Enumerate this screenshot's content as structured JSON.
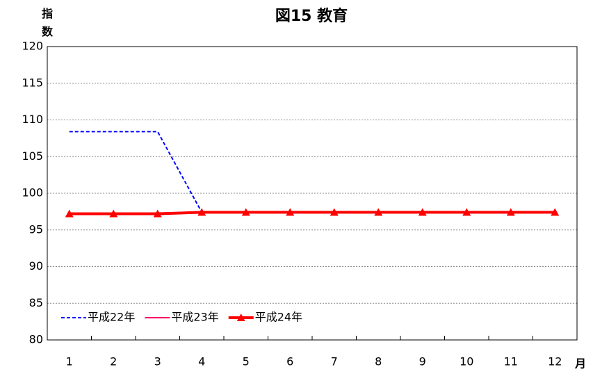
{
  "chart_data": {
    "type": "line",
    "title": "図15 教育",
    "y_label": "指数",
    "x_label": "月",
    "categories": [
      "1",
      "2",
      "3",
      "4",
      "5",
      "6",
      "7",
      "8",
      "9",
      "10",
      "11",
      "12"
    ],
    "series": [
      {
        "name": "平成22年",
        "color": "#0000ff",
        "line_style": "dashed",
        "marker": "none",
        "values": [
          108.4,
          108.4,
          108.4,
          97.4,
          97.4,
          97.4,
          97.4,
          97.4,
          97.4,
          97.4,
          97.4,
          97.4
        ]
      },
      {
        "name": "平成23年",
        "color": "#ff0066",
        "line_style": "solid",
        "marker": "none",
        "values": [
          97.2,
          97.2,
          97.2,
          97.4,
          97.4,
          97.4,
          97.4,
          97.4,
          97.4,
          97.4,
          97.4,
          97.4
        ]
      },
      {
        "name": "平成24年",
        "color": "#ff0000",
        "line_style": "thick",
        "marker": "triangle",
        "values": [
          97.2,
          97.2,
          97.2,
          97.4,
          97.4,
          97.4,
          97.4,
          97.4,
          97.4,
          97.4,
          97.4,
          97.4
        ]
      }
    ],
    "ylim": [
      80,
      120
    ],
    "yticks": [
      80,
      85,
      90,
      95,
      100,
      105,
      110,
      115,
      120
    ],
    "grid": true,
    "legend": "lower left"
  }
}
